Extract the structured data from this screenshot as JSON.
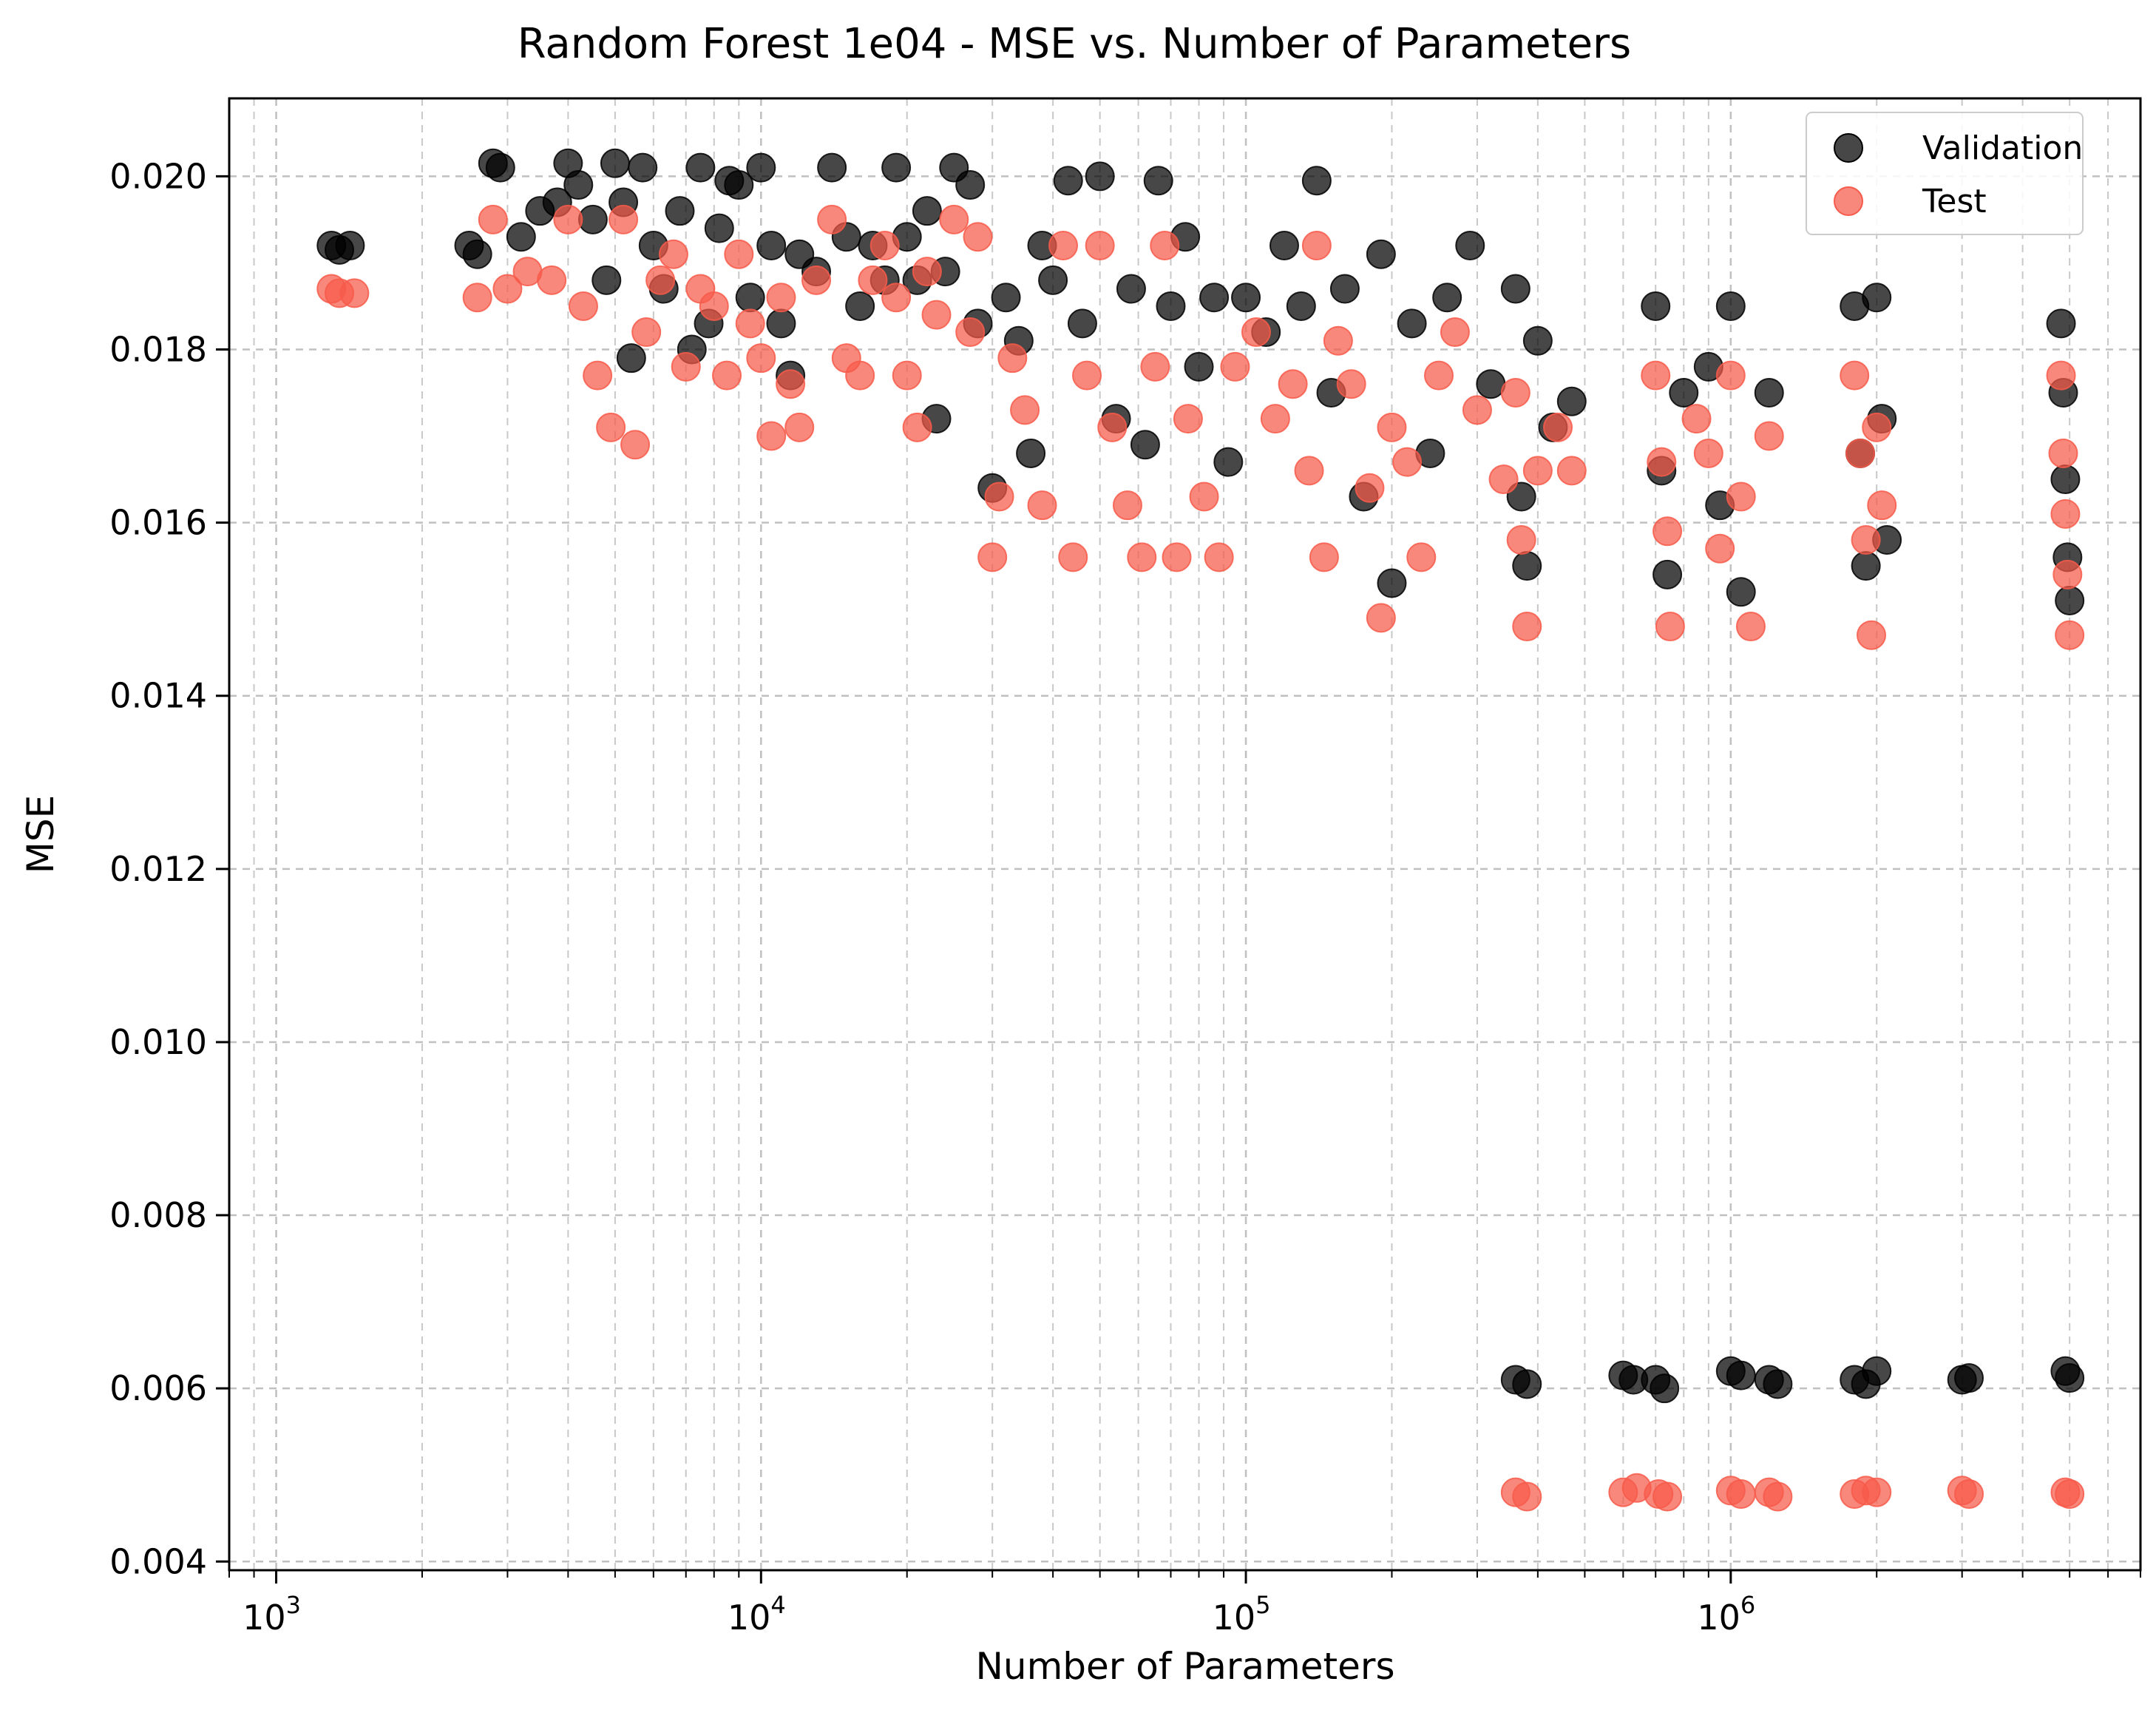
{
  "chart_data": {
    "type": "scatter",
    "title": "Random Forest 1e04 - MSE vs. Number of Parameters",
    "xlabel": "Number of Parameters",
    "ylabel": "MSE",
    "xscale": "log",
    "xlim": [
      800,
      7000000
    ],
    "ylim": [
      0.0039,
      0.0209
    ],
    "grid": true,
    "legend_position": "top-right",
    "x_ticks": [
      {
        "value": 1000,
        "base": "10",
        "exp": "3"
      },
      {
        "value": 10000,
        "base": "10",
        "exp": "4"
      },
      {
        "value": 100000,
        "base": "10",
        "exp": "5"
      },
      {
        "value": 1000000,
        "base": "10",
        "exp": "6"
      }
    ],
    "y_ticks": [
      {
        "value": 0.004,
        "label": "0.004"
      },
      {
        "value": 0.006,
        "label": "0.006"
      },
      {
        "value": 0.008,
        "label": "0.008"
      },
      {
        "value": 0.01,
        "label": "0.010"
      },
      {
        "value": 0.012,
        "label": "0.012"
      },
      {
        "value": 0.014,
        "label": "0.014"
      },
      {
        "value": 0.016,
        "label": "0.016"
      },
      {
        "value": 0.018,
        "label": "0.018"
      },
      {
        "value": 0.02,
        "label": "0.020"
      }
    ],
    "series": [
      {
        "name": "Validation",
        "color": "#000000",
        "points": [
          [
            1300,
            0.0192
          ],
          [
            1350,
            0.01915
          ],
          [
            1420,
            0.0192
          ],
          [
            2500,
            0.0192
          ],
          [
            2600,
            0.0191
          ],
          [
            2800,
            0.02015
          ],
          [
            2900,
            0.0201
          ],
          [
            3200,
            0.0193
          ],
          [
            3500,
            0.0196
          ],
          [
            3800,
            0.0197
          ],
          [
            4000,
            0.02015
          ],
          [
            4200,
            0.0199
          ],
          [
            4500,
            0.0195
          ],
          [
            4800,
            0.0188
          ],
          [
            5000,
            0.02015
          ],
          [
            5200,
            0.0197
          ],
          [
            5400,
            0.0179
          ],
          [
            5700,
            0.0201
          ],
          [
            6000,
            0.0192
          ],
          [
            6300,
            0.0187
          ],
          [
            6800,
            0.0196
          ],
          [
            7200,
            0.018
          ],
          [
            7500,
            0.0201
          ],
          [
            7800,
            0.0183
          ],
          [
            8200,
            0.0194
          ],
          [
            8600,
            0.01995
          ],
          [
            9000,
            0.0199
          ],
          [
            9500,
            0.0186
          ],
          [
            10000,
            0.0201
          ],
          [
            10500,
            0.0192
          ],
          [
            11000,
            0.0183
          ],
          [
            11500,
            0.0177
          ],
          [
            12000,
            0.0191
          ],
          [
            13000,
            0.0189
          ],
          [
            14000,
            0.0201
          ],
          [
            15000,
            0.0193
          ],
          [
            16000,
            0.0185
          ],
          [
            17000,
            0.0192
          ],
          [
            18000,
            0.0188
          ],
          [
            19000,
            0.0201
          ],
          [
            20000,
            0.0193
          ],
          [
            21000,
            0.0188
          ],
          [
            22000,
            0.0196
          ],
          [
            23000,
            0.0172
          ],
          [
            24000,
            0.0189
          ],
          [
            25000,
            0.0201
          ],
          [
            27000,
            0.0199
          ],
          [
            28000,
            0.0183
          ],
          [
            30000,
            0.0164
          ],
          [
            32000,
            0.0186
          ],
          [
            34000,
            0.0181
          ],
          [
            36000,
            0.0168
          ],
          [
            38000,
            0.0192
          ],
          [
            40000,
            0.0188
          ],
          [
            43000,
            0.01995
          ],
          [
            46000,
            0.0183
          ],
          [
            50000,
            0.02
          ],
          [
            54000,
            0.0172
          ],
          [
            58000,
            0.0187
          ],
          [
            62000,
            0.0169
          ],
          [
            66000,
            0.01995
          ],
          [
            70000,
            0.0185
          ],
          [
            75000,
            0.0193
          ],
          [
            80000,
            0.0178
          ],
          [
            86000,
            0.0186
          ],
          [
            92000,
            0.0167
          ],
          [
            100000,
            0.0186
          ],
          [
            110000,
            0.0182
          ],
          [
            120000,
            0.0192
          ],
          [
            130000,
            0.0185
          ],
          [
            140000,
            0.01995
          ],
          [
            150000,
            0.0175
          ],
          [
            160000,
            0.0187
          ],
          [
            175000,
            0.0163
          ],
          [
            190000,
            0.0191
          ],
          [
            200000,
            0.0153
          ],
          [
            220000,
            0.0183
          ],
          [
            240000,
            0.0168
          ],
          [
            260000,
            0.0186
          ],
          [
            290000,
            0.0192
          ],
          [
            320000,
            0.0176
          ],
          [
            360000,
            0.0187
          ],
          [
            370000,
            0.0163
          ],
          [
            380000,
            0.0155
          ],
          [
            400000,
            0.0181
          ],
          [
            430000,
            0.0171
          ],
          [
            470000,
            0.0174
          ],
          [
            700000,
            0.0185
          ],
          [
            720000,
            0.0166
          ],
          [
            740000,
            0.0154
          ],
          [
            800000,
            0.0175
          ],
          [
            900000,
            0.0178
          ],
          [
            950000,
            0.0162
          ],
          [
            1000000,
            0.0185
          ],
          [
            1050000,
            0.0152
          ],
          [
            1200000,
            0.0175
          ],
          [
            1800000,
            0.0185
          ],
          [
            1850000,
            0.0168
          ],
          [
            1900000,
            0.0155
          ],
          [
            2000000,
            0.0186
          ],
          [
            2050000,
            0.0172
          ],
          [
            2100000,
            0.0158
          ],
          [
            4800000,
            0.0183
          ],
          [
            4850000,
            0.0175
          ],
          [
            4900000,
            0.0165
          ],
          [
            4950000,
            0.0156
          ],
          [
            5000000,
            0.0151
          ],
          [
            360000,
            0.0061
          ],
          [
            380000,
            0.00605
          ],
          [
            600000,
            0.00615
          ],
          [
            630000,
            0.0061
          ],
          [
            700000,
            0.0061
          ],
          [
            730000,
            0.006
          ],
          [
            1000000,
            0.0062
          ],
          [
            1050000,
            0.00615
          ],
          [
            1200000,
            0.0061
          ],
          [
            1250000,
            0.00605
          ],
          [
            1800000,
            0.0061
          ],
          [
            1900000,
            0.00605
          ],
          [
            2000000,
            0.0062
          ],
          [
            3000000,
            0.0061
          ],
          [
            3100000,
            0.00612
          ],
          [
            4900000,
            0.0062
          ],
          [
            5000000,
            0.00612
          ]
        ]
      },
      {
        "name": "Test",
        "color": "#f75a4a",
        "points": [
          [
            1300,
            0.0187
          ],
          [
            1350,
            0.01865
          ],
          [
            1450,
            0.01865
          ],
          [
            2600,
            0.0186
          ],
          [
            2800,
            0.0195
          ],
          [
            3000,
            0.0187
          ],
          [
            3300,
            0.0189
          ],
          [
            3700,
            0.0188
          ],
          [
            4000,
            0.0195
          ],
          [
            4300,
            0.0185
          ],
          [
            4600,
            0.0177
          ],
          [
            4900,
            0.0171
          ],
          [
            5200,
            0.0195
          ],
          [
            5500,
            0.0169
          ],
          [
            5800,
            0.0182
          ],
          [
            6200,
            0.0188
          ],
          [
            6600,
            0.0191
          ],
          [
            7000,
            0.0178
          ],
          [
            7500,
            0.0187
          ],
          [
            8000,
            0.0185
          ],
          [
            8500,
            0.0177
          ],
          [
            9000,
            0.0191
          ],
          [
            9500,
            0.0183
          ],
          [
            10000,
            0.0179
          ],
          [
            10500,
            0.017
          ],
          [
            11000,
            0.0186
          ],
          [
            11500,
            0.0176
          ],
          [
            12000,
            0.0171
          ],
          [
            13000,
            0.0188
          ],
          [
            14000,
            0.0195
          ],
          [
            15000,
            0.0179
          ],
          [
            16000,
            0.0177
          ],
          [
            17000,
            0.0188
          ],
          [
            18000,
            0.0192
          ],
          [
            19000,
            0.0186
          ],
          [
            20000,
            0.0177
          ],
          [
            21000,
            0.0171
          ],
          [
            22000,
            0.0189
          ],
          [
            23000,
            0.0184
          ],
          [
            25000,
            0.0195
          ],
          [
            27000,
            0.0182
          ],
          [
            28000,
            0.0193
          ],
          [
            30000,
            0.0156
          ],
          [
            31000,
            0.0163
          ],
          [
            33000,
            0.0179
          ],
          [
            35000,
            0.0173
          ],
          [
            38000,
            0.0162
          ],
          [
            42000,
            0.0192
          ],
          [
            44000,
            0.0156
          ],
          [
            47000,
            0.0177
          ],
          [
            50000,
            0.0192
          ],
          [
            53000,
            0.0171
          ],
          [
            57000,
            0.0162
          ],
          [
            61000,
            0.0156
          ],
          [
            65000,
            0.0178
          ],
          [
            68000,
            0.0192
          ],
          [
            72000,
            0.0156
          ],
          [
            76000,
            0.0172
          ],
          [
            82000,
            0.0163
          ],
          [
            88000,
            0.0156
          ],
          [
            95000,
            0.0178
          ],
          [
            105000,
            0.0182
          ],
          [
            115000,
            0.0172
          ],
          [
            125000,
            0.0176
          ],
          [
            135000,
            0.0166
          ],
          [
            140000,
            0.0192
          ],
          [
            145000,
            0.0156
          ],
          [
            155000,
            0.0181
          ],
          [
            165000,
            0.0176
          ],
          [
            180000,
            0.0164
          ],
          [
            190000,
            0.0149
          ],
          [
            200000,
            0.0171
          ],
          [
            215000,
            0.0167
          ],
          [
            230000,
            0.0156
          ],
          [
            250000,
            0.0177
          ],
          [
            270000,
            0.0182
          ],
          [
            300000,
            0.0173
          ],
          [
            340000,
            0.0165
          ],
          [
            360000,
            0.0175
          ],
          [
            370000,
            0.0158
          ],
          [
            380000,
            0.0148
          ],
          [
            400000,
            0.0166
          ],
          [
            440000,
            0.0171
          ],
          [
            470000,
            0.0166
          ],
          [
            700000,
            0.0177
          ],
          [
            720000,
            0.0167
          ],
          [
            740000,
            0.0159
          ],
          [
            750000,
            0.0148
          ],
          [
            850000,
            0.0172
          ],
          [
            900000,
            0.0168
          ],
          [
            950000,
            0.0157
          ],
          [
            1000000,
            0.0177
          ],
          [
            1050000,
            0.0163
          ],
          [
            1100000,
            0.0148
          ],
          [
            1200000,
            0.017
          ],
          [
            1800000,
            0.0177
          ],
          [
            1850000,
            0.0168
          ],
          [
            1900000,
            0.0158
          ],
          [
            1950000,
            0.0147
          ],
          [
            2000000,
            0.0171
          ],
          [
            2050000,
            0.0162
          ],
          [
            4800000,
            0.0177
          ],
          [
            4850000,
            0.0168
          ],
          [
            4900000,
            0.0161
          ],
          [
            4950000,
            0.0154
          ],
          [
            5000000,
            0.0147
          ],
          [
            360000,
            0.0048
          ],
          [
            380000,
            0.00475
          ],
          [
            600000,
            0.0048
          ],
          [
            640000,
            0.00485
          ],
          [
            710000,
            0.00478
          ],
          [
            740000,
            0.00475
          ],
          [
            1000000,
            0.00482
          ],
          [
            1050000,
            0.00478
          ],
          [
            1200000,
            0.0048
          ],
          [
            1250000,
            0.00475
          ],
          [
            1800000,
            0.00478
          ],
          [
            1900000,
            0.00482
          ],
          [
            2000000,
            0.0048
          ],
          [
            3000000,
            0.00482
          ],
          [
            3100000,
            0.00478
          ],
          [
            4900000,
            0.0048
          ],
          [
            5000000,
            0.00478
          ]
        ]
      }
    ]
  }
}
